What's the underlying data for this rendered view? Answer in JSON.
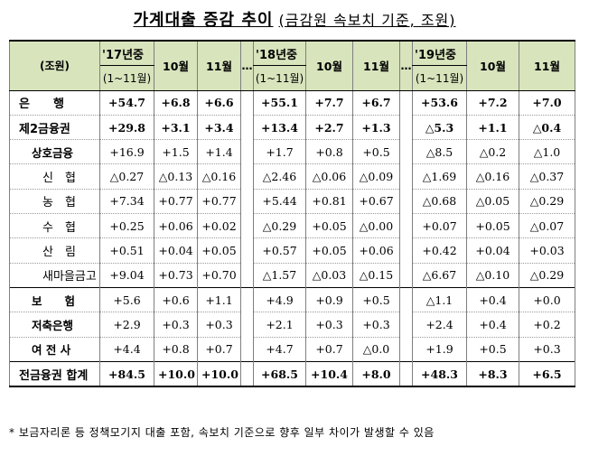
{
  "title": {
    "main": "가계대출 증감 추이",
    "note": "(금감원 속보치 기준, 조원)"
  },
  "header": {
    "unit": "(조원)",
    "dots": "…",
    "groups": [
      {
        "year": "'17년중",
        "range": "(1~11월)",
        "m10": "10월",
        "m11": "11월"
      },
      {
        "year": "'18년중",
        "range": "(1~11월)",
        "m10": "10월",
        "m11": "11월"
      },
      {
        "year": "'19년중",
        "range": "(1~11월)",
        "m10": "10월",
        "m11": "11월"
      }
    ]
  },
  "rows": [
    {
      "label": "은　　행",
      "level": 0,
      "bold": true,
      "values": [
        "+54.7",
        "+6.8",
        "+6.6",
        "+55.1",
        "+7.7",
        "+6.7",
        "+53.6",
        "+7.2",
        "+7.0"
      ]
    },
    {
      "label": "제2금융권",
      "level": 0,
      "bold": true,
      "values": [
        "+29.8",
        "+3.1",
        "+3.4",
        "+13.4",
        "+2.7",
        "+1.3",
        "△5.3",
        "+1.1",
        "△0.4"
      ]
    },
    {
      "label": "상호금융",
      "level": 1,
      "bold": false,
      "values": [
        "+16.9",
        "+1.5",
        "+1.4",
        "+1.7",
        "+0.8",
        "+0.5",
        "△8.5",
        "△0.2",
        "△1.0"
      ]
    },
    {
      "label": "신　협",
      "level": 2,
      "bold": false,
      "values": [
        "△0.27",
        "△0.13",
        "△0.16",
        "△2.46",
        "△0.06",
        "△0.09",
        "△1.69",
        "△0.16",
        "△0.37"
      ]
    },
    {
      "label": "농　협",
      "level": 2,
      "bold": false,
      "values": [
        "+7.34",
        "+0.77",
        "+0.77",
        "+5.44",
        "+0.81",
        "+0.67",
        "△0.68",
        "△0.05",
        "△0.29"
      ]
    },
    {
      "label": "수　협",
      "level": 2,
      "bold": false,
      "values": [
        "+0.25",
        "+0.06",
        "+0.02",
        "△0.29",
        "+0.05",
        "△0.00",
        "+0.07",
        "+0.05",
        "△0.07"
      ]
    },
    {
      "label": "산　림",
      "level": 2,
      "bold": false,
      "values": [
        "+0.51",
        "+0.04",
        "+0.05",
        "+0.57",
        "+0.05",
        "+0.06",
        "+0.42",
        "+0.04",
        "+0.03"
      ]
    },
    {
      "label": "새마을금고",
      "level": 2,
      "bold": false,
      "values": [
        "+9.04",
        "+0.73",
        "+0.70",
        "△1.57",
        "△0.03",
        "△0.15",
        "△6.67",
        "△0.10",
        "△0.29"
      ]
    },
    {
      "label": "보　　험",
      "level": 1,
      "bold": false,
      "values": [
        "+5.6",
        "+0.6",
        "+1.1",
        "+4.9",
        "+0.9",
        "+0.5",
        "△1.1",
        "+0.4",
        "+0.0"
      ]
    },
    {
      "label": "저축은행",
      "level": 1,
      "bold": false,
      "values": [
        "+2.9",
        "+0.3",
        "+0.3",
        "+2.1",
        "+0.3",
        "+0.3",
        "+2.4",
        "+0.4",
        "+0.2"
      ]
    },
    {
      "label": "여 전 사",
      "level": 1,
      "bold": false,
      "values": [
        "+4.4",
        "+0.8",
        "+0.7",
        "+4.7",
        "+0.7",
        "△0.0",
        "+1.9",
        "+0.5",
        "+0.3"
      ]
    },
    {
      "label": "전금융권 합계",
      "level": 0,
      "bold": true,
      "values": [
        "+84.5",
        "+10.0",
        "+10.0",
        "+68.5",
        "+10.4",
        "+8.0",
        "+48.3",
        "+8.3",
        "+6.5"
      ]
    }
  ],
  "footnote": "* 보금자리론 등 정책모기지 대출 포함, 속보치 기준으로 향후 일부 차이가 발생할 수 있음"
}
